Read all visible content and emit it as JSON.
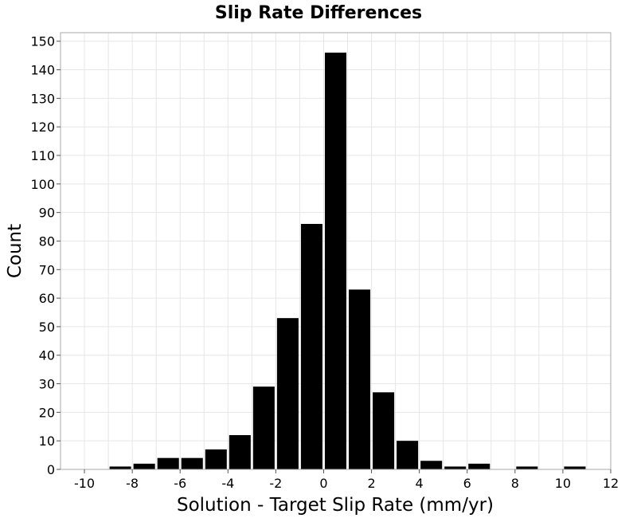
{
  "chart_data": {
    "type": "bar",
    "title": "Slip Rate Differences",
    "xlabel": "Solution - Target Slip Rate (mm/yr)",
    "ylabel": "Count",
    "xlim": [
      -11,
      12
    ],
    "ylim": [
      0,
      153
    ],
    "grid": true,
    "x_ticks": [
      -10,
      -8,
      -6,
      -4,
      -2,
      0,
      2,
      4,
      6,
      8,
      10,
      12
    ],
    "x_tick_labels": [
      "-10",
      "-8",
      "-6",
      "-4",
      "-2",
      "0",
      "2",
      "4",
      "6",
      "8",
      "10",
      "12"
    ],
    "y_ticks": [
      0,
      10,
      20,
      30,
      40,
      50,
      60,
      70,
      80,
      90,
      100,
      110,
      120,
      130,
      140,
      150
    ],
    "y_tick_labels": [
      "0",
      "10",
      "20",
      "30",
      "40",
      "50",
      "60",
      "70",
      "80",
      "90",
      "100",
      "110",
      "120",
      "130",
      "140",
      "150"
    ],
    "bin_width": 1,
    "bars": [
      {
        "x": -8.5,
        "value": 1
      },
      {
        "x": -7.5,
        "value": 2
      },
      {
        "x": -6.5,
        "value": 4
      },
      {
        "x": -5.5,
        "value": 4
      },
      {
        "x": -4.5,
        "value": 7
      },
      {
        "x": -3.5,
        "value": 12
      },
      {
        "x": -2.5,
        "value": 29
      },
      {
        "x": -1.5,
        "value": 53
      },
      {
        "x": -0.5,
        "value": 86
      },
      {
        "x": 0.5,
        "value": 146
      },
      {
        "x": 1.5,
        "value": 63
      },
      {
        "x": 2.5,
        "value": 27
      },
      {
        "x": 3.5,
        "value": 10
      },
      {
        "x": 4.5,
        "value": 3
      },
      {
        "x": 5.5,
        "value": 1
      },
      {
        "x": 6.5,
        "value": 2
      },
      {
        "x": 8.5,
        "value": 1
      },
      {
        "x": 10.5,
        "value": 1
      }
    ],
    "colors": {
      "bar": "#000000",
      "grid": "#e6e6e6",
      "frame": "#aaaaaa",
      "background": "#ffffff"
    }
  }
}
